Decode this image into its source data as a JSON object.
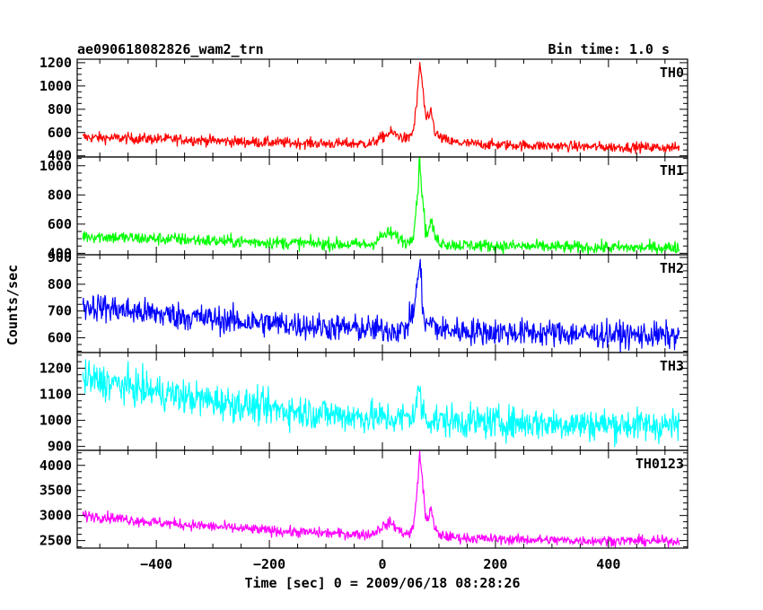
{
  "chart_data": {
    "type": "line",
    "title": "ae090618082826_wam2_trn",
    "subtitle": "Bin time: 1.0 s",
    "xlabel": "Time [sec] 0 = 2009/06/18 08:28:26",
    "ylabel": "Counts/sec",
    "xlim": [
      -540,
      540
    ],
    "x_ticks": [
      -400,
      -200,
      0,
      200,
      400
    ],
    "x_tick_labels": [
      "−400",
      "−200",
      "0",
      "200",
      "400"
    ],
    "grid": false,
    "panels": [
      {
        "name": "TH0",
        "color": "#ff0000",
        "ylim": [
          390,
          1230
        ],
        "y_ticks": [
          400,
          600,
          800,
          1000,
          1200
        ],
        "y_tick_labels": [
          "400",
          "600",
          "800",
          "1000",
          "1200"
        ],
        "series": {
          "x": [
            -530,
            -500,
            -450,
            -400,
            -350,
            -300,
            -250,
            -200,
            -150,
            -100,
            -50,
            -20,
            0,
            15,
            30,
            45,
            55,
            62,
            66,
            70,
            76,
            82,
            86,
            92,
            100,
            120,
            150,
            200,
            250,
            300,
            350,
            400,
            450,
            500,
            525
          ],
          "y": [
            560,
            555,
            550,
            545,
            540,
            530,
            520,
            515,
            510,
            505,
            505,
            505,
            560,
            600,
            570,
            540,
            620,
            900,
            1200,
            1050,
            740,
            700,
            800,
            620,
            560,
            520,
            505,
            495,
            490,
            485,
            480,
            475,
            475,
            470,
            470
          ]
        }
      },
      {
        "name": "TH1",
        "color": "#00ff00",
        "ylim": [
          390,
          1060
        ],
        "y_ticks": [
          400,
          600,
          800,
          1000
        ],
        "y_tick_labels": [
          "400",
          "600",
          "800",
          "1000"
        ],
        "series": {
          "x": [
            -530,
            -500,
            -450,
            -400,
            -350,
            -300,
            -250,
            -200,
            -150,
            -100,
            -50,
            -20,
            0,
            15,
            30,
            45,
            55,
            62,
            66,
            70,
            76,
            82,
            86,
            92,
            100,
            120,
            150,
            200,
            250,
            300,
            350,
            400,
            450,
            500,
            525
          ],
          "y": [
            520,
            515,
            505,
            500,
            495,
            485,
            480,
            475,
            470,
            465,
            460,
            460,
            520,
            540,
            500,
            470,
            540,
            800,
            1040,
            840,
            560,
            540,
            640,
            520,
            480,
            460,
            455,
            450,
            448,
            445,
            440,
            440,
            438,
            440,
            440
          ]
        }
      },
      {
        "name": "TH2",
        "color": "#0000ff",
        "ylim": [
          545,
          910
        ],
        "y_ticks": [
          600,
          700,
          800,
          900
        ],
        "y_tick_labels": [
          "600",
          "700",
          "800",
          "900"
        ],
        "series": {
          "x": [
            -530,
            -500,
            -450,
            -400,
            -350,
            -300,
            -250,
            -200,
            -150,
            -100,
            -50,
            -20,
            0,
            20,
            40,
            55,
            62,
            66,
            70,
            76,
            85,
            100,
            150,
            200,
            250,
            300,
            350,
            400,
            450,
            500,
            525
          ],
          "y": [
            720,
            715,
            700,
            690,
            680,
            670,
            660,
            655,
            648,
            640,
            635,
            632,
            630,
            630,
            630,
            700,
            800,
            890,
            760,
            640,
            660,
            630,
            625,
            622,
            620,
            618,
            615,
            612,
            610,
            608,
            605
          ]
        }
      },
      {
        "name": "TH3",
        "color": "#00ffff",
        "ylim": [
          885,
          1260
        ],
        "y_ticks": [
          900,
          1000,
          1100,
          1200
        ],
        "y_tick_labels": [
          "900",
          "1000",
          "1100",
          "1200"
        ],
        "series": {
          "x": [
            -530,
            -500,
            -450,
            -400,
            -350,
            -300,
            -250,
            -200,
            -150,
            -100,
            -50,
            0,
            30,
            55,
            62,
            66,
            70,
            80,
            100,
            150,
            200,
            250,
            300,
            350,
            400,
            450,
            500,
            525
          ],
          "y": [
            1160,
            1150,
            1130,
            1110,
            1090,
            1075,
            1060,
            1045,
            1035,
            1025,
            1015,
            1010,
            1005,
            1020,
            1080,
            1120,
            1040,
            1005,
            1000,
            995,
            992,
            990,
            988,
            985,
            985,
            982,
            980,
            980
          ]
        }
      },
      {
        "name": "TH0123",
        "color": "#ff00ff",
        "ylim": [
          2350,
          4300
        ],
        "y_ticks": [
          2500,
          3000,
          3500,
          4000
        ],
        "y_tick_labels": [
          "2500",
          "3000",
          "3500",
          "4000"
        ],
        "series": {
          "x": [
            -530,
            -500,
            -450,
            -400,
            -350,
            -300,
            -250,
            -200,
            -150,
            -100,
            -50,
            -20,
            0,
            15,
            30,
            45,
            55,
            62,
            66,
            70,
            76,
            82,
            86,
            92,
            100,
            120,
            150,
            200,
            250,
            300,
            350,
            400,
            450,
            500,
            525
          ],
          "y": [
            3000,
            2980,
            2920,
            2860,
            2820,
            2780,
            2740,
            2700,
            2670,
            2650,
            2630,
            2620,
            2780,
            2860,
            2700,
            2620,
            2750,
            3600,
            4250,
            3800,
            3000,
            2950,
            3150,
            2750,
            2620,
            2570,
            2550,
            2530,
            2520,
            2510,
            2500,
            2500,
            2495,
            2490,
            2490
          ]
        }
      }
    ]
  }
}
